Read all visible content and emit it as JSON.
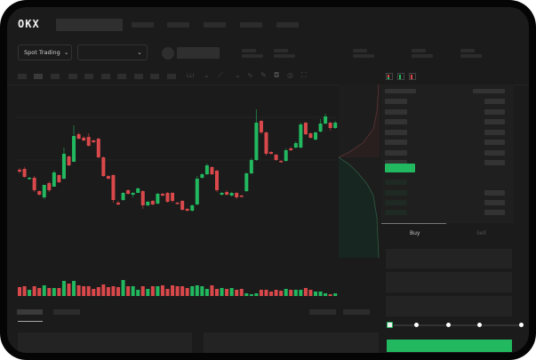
{
  "header": {
    "brand": "OKX",
    "nav_items": 4
  },
  "toolbar": {
    "market_selector": "Spot Trading",
    "pair_selector": ""
  },
  "colors": {
    "up": "#22b85f",
    "down": "#d9484a",
    "accent_button": "#22b85f",
    "background": "#1b1b1b"
  },
  "icons": [
    "chevron-down-icon",
    "camera-icon",
    "settings-icon",
    "fullscreen-icon",
    "orderbook-both-icon",
    "orderbook-bids-icon",
    "orderbook-asks-icon"
  ],
  "candles": [
    [
      117,
      115,
      119,
      113
    ],
    [
      118,
      109,
      120,
      108
    ],
    [
      107,
      108,
      109,
      106
    ],
    [
      108,
      94,
      110,
      92
    ],
    [
      93,
      89,
      94,
      88
    ],
    [
      86,
      100,
      100,
      84
    ],
    [
      102,
      94,
      104,
      92
    ],
    [
      98,
      114,
      116,
      98
    ],
    [
      111,
      103,
      112,
      102
    ],
    [
      107,
      135,
      142,
      106
    ],
    [
      132,
      122,
      133,
      121
    ],
    [
      126,
      155,
      167,
      126
    ],
    [
      157,
      152,
      159,
      151
    ],
    [
      153,
      150,
      155,
      149
    ],
    [
      154,
      144,
      158,
      143
    ],
    [
      150,
      148,
      151,
      147
    ],
    [
      152,
      131,
      153,
      130
    ],
    [
      131,
      110,
      132,
      109
    ],
    [
      110,
      107,
      111,
      106
    ],
    [
      111,
      83,
      112,
      80
    ],
    [
      80,
      78,
      82,
      77
    ],
    [
      83,
      91,
      92,
      82
    ],
    [
      94,
      90,
      95,
      89
    ],
    [
      89,
      91,
      92,
      86
    ],
    [
      91,
      96,
      97,
      91
    ],
    [
      93,
      77,
      94,
      73
    ],
    [
      77,
      81,
      82,
      76
    ],
    [
      82,
      78,
      83,
      77
    ],
    [
      79,
      90,
      91,
      78
    ],
    [
      90,
      88,
      91,
      87
    ],
    [
      91,
      81,
      92,
      80
    ],
    [
      91,
      82,
      92,
      80
    ],
    [
      80,
      79,
      81,
      78
    ],
    [
      82,
      72,
      83,
      71
    ],
    [
      73,
      71,
      74,
      70
    ],
    [
      71,
      77,
      78,
      70
    ],
    [
      78,
      107,
      110,
      77
    ],
    [
      108,
      112,
      113,
      107
    ],
    [
      112,
      122,
      124,
      111
    ],
    [
      120,
      112,
      121,
      111
    ],
    [
      116,
      94,
      117,
      92
    ],
    [
      89,
      91,
      92,
      88
    ],
    [
      92,
      89,
      94,
      88
    ],
    [
      88,
      91,
      92,
      87
    ],
    [
      91,
      86,
      92,
      84
    ],
    [
      88,
      87,
      89,
      86
    ],
    [
      93,
      113,
      114,
      92
    ],
    [
      113,
      128,
      130,
      112
    ],
    [
      128,
      170,
      185,
      127
    ],
    [
      172,
      159,
      173,
      157
    ],
    [
      159,
      135,
      160,
      133
    ],
    [
      137,
      135,
      138,
      134
    ],
    [
      134,
      128,
      135,
      127
    ],
    [
      127,
      126,
      128,
      125
    ],
    [
      127,
      139,
      141,
      126
    ],
    [
      141,
      139,
      143,
      138
    ],
    [
      142,
      147,
      149,
      141
    ],
    [
      142,
      168,
      170,
      141
    ],
    [
      170,
      157,
      171,
      156
    ],
    [
      158,
      153,
      159,
      152
    ],
    [
      151,
      159,
      160,
      150
    ],
    [
      160,
      169,
      174,
      159
    ],
    [
      169,
      177,
      180,
      168
    ],
    [
      170,
      164,
      171,
      161
    ],
    [
      164,
      170,
      172,
      163
    ]
  ],
  "volumes": [
    10,
    11,
    7,
    11,
    9,
    12,
    9,
    9,
    9,
    17,
    14,
    17,
    12,
    11,
    11,
    8,
    10,
    13,
    10,
    11,
    10,
    18,
    11,
    11,
    7,
    11,
    8,
    11,
    11,
    12,
    8,
    12,
    11,
    11,
    9,
    11,
    12,
    11,
    8,
    12,
    8,
    9,
    8,
    9,
    7,
    8,
    3,
    2,
    3,
    7,
    7,
    5,
    7,
    6,
    8,
    7,
    7,
    7,
    9,
    7,
    5,
    5,
    3,
    2,
    3
  ]
}
